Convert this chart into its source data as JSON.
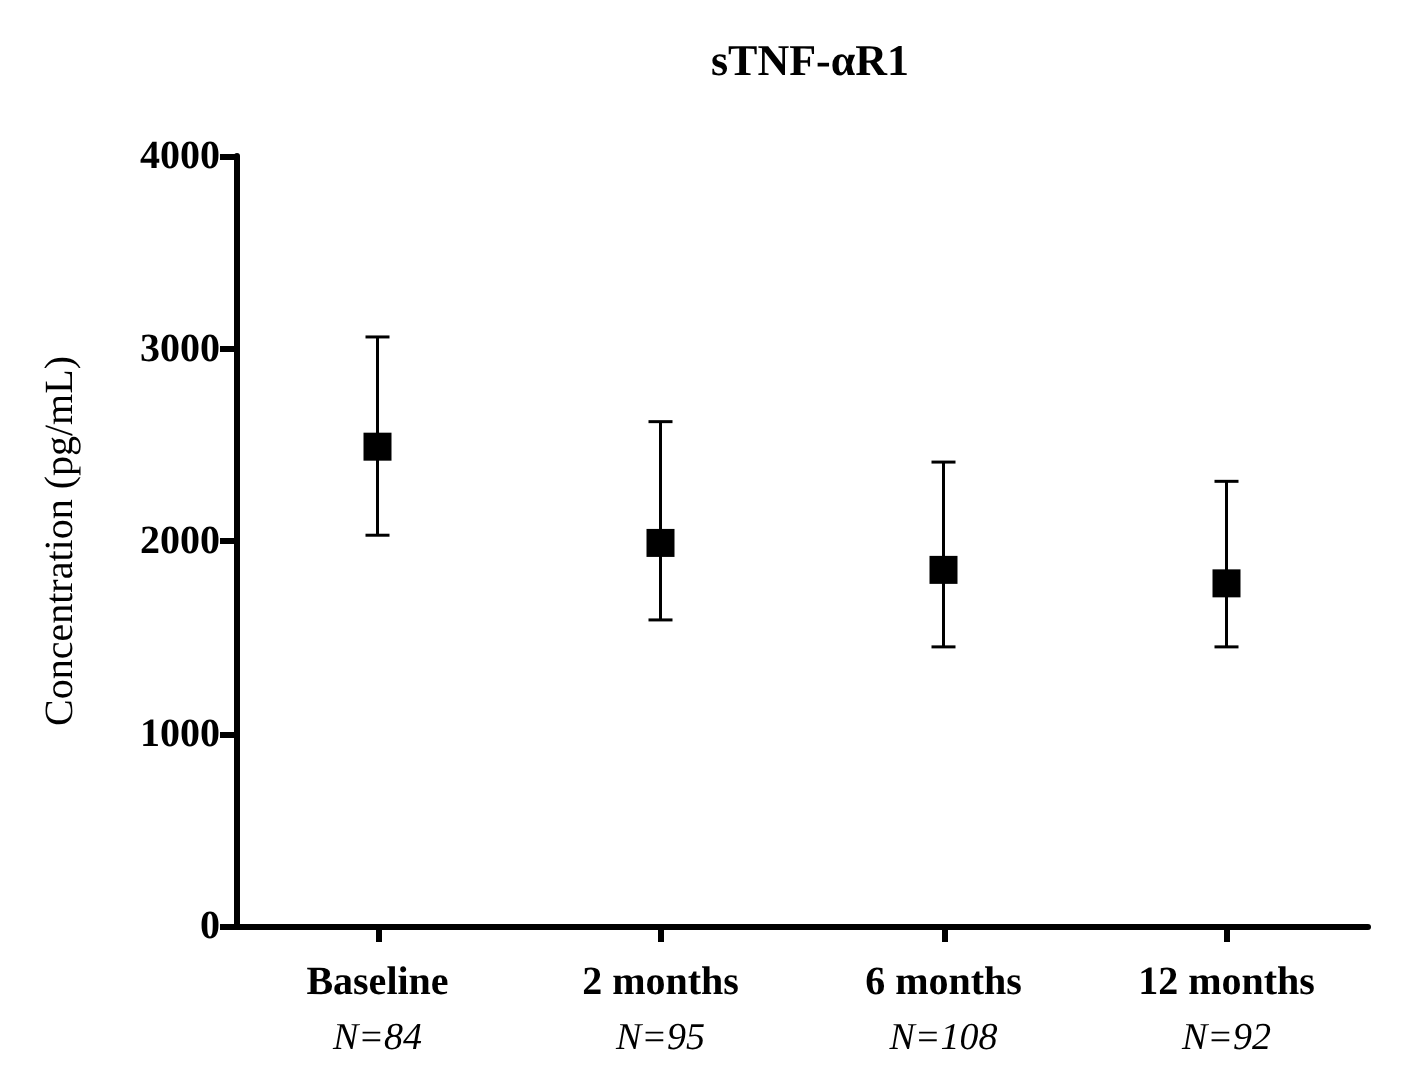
{
  "chart_data": {
    "type": "scatter",
    "title": "sTNF-αR1",
    "ylabel": "Concentration (pg/mL)",
    "categories": [
      "Baseline\nN=84",
      "2 months\nN=95",
      "6 months\nN=108",
      "12 months\nN=92"
    ],
    "values": [
      2490,
      1990,
      1850,
      1780
    ],
    "errors": [
      [
        2030,
        3060
      ],
      [
        1590,
        2620
      ],
      [
        1450,
        2410
      ],
      [
        1450,
        2310
      ]
    ],
    "color": "#000000",
    "marker": "square",
    "ylim": [
      0,
      4000
    ],
    "yticks": [
      0,
      1000,
      2000,
      3000,
      4000
    ],
    "grid": false
  }
}
